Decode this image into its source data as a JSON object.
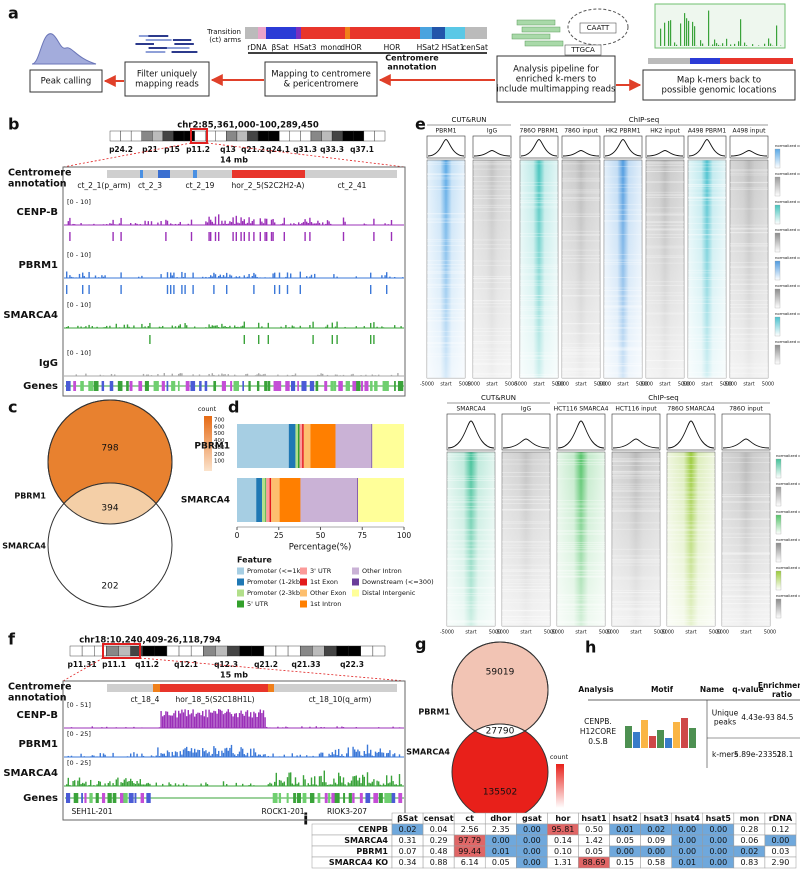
{
  "panel_labels": [
    "a",
    "b",
    "c",
    "d",
    "e",
    "f",
    "g",
    "h",
    "i"
  ],
  "panel_a": {
    "boxes": [
      [
        "Peak calling"
      ],
      [
        "Filter uniquely",
        "mapping reads"
      ],
      [
        "Mapping to centromere",
        "& pericentromere"
      ],
      [
        "Analysis pipeline for",
        "enriched k-mers to",
        "include multimapping reads"
      ],
      [
        "Map k-mers back to",
        "possible genomic locations"
      ]
    ],
    "transition": [
      "Transition",
      "(ct) arms"
    ],
    "legend": [
      "rDNA",
      "βSat",
      "HSat3",
      "mono",
      "dHOR",
      "HOR",
      "HSat2",
      "HSat1",
      "cenSat"
    ],
    "annotation": [
      "Centromere",
      "annotation"
    ],
    "kmers": [
      "CAATT",
      "TTGCA"
    ]
  },
  "panel_b": {
    "region": "chr2:85,361,000-100,289,450",
    "bands": [
      "p24.2",
      "p21",
      "p15",
      "p11.2",
      "q13",
      "q21.2",
      "q24.1",
      "q31.3",
      "q33.3",
      "q37.1"
    ],
    "scale": "14 mb",
    "annotation_label": [
      "Centromere",
      "annotation"
    ],
    "annotations": [
      "ct_2_1(p_arm)",
      "ct_2_3",
      "ct_2_19",
      "hor_2_5(S2C2H2-A)",
      "ct_2_41"
    ],
    "tracks": [
      {
        "name": "CENP-B",
        "range": "[0 - 10]",
        "color": "#9b30b8"
      },
      {
        "name": "PBRM1",
        "range": "[0 - 10]",
        "color": "#3b78d8"
      },
      {
        "name": "SMARCA4",
        "range": "[0 - 10]",
        "color": "#3aa33a"
      },
      {
        "name": "IgG",
        "range": "[0 - 10]",
        "color": "#aaaaaa"
      }
    ],
    "genes": "Genes"
  },
  "panel_c": {
    "sets": [
      "PBRM1",
      "SMARCA4"
    ],
    "counts": [
      798,
      394,
      202
    ],
    "legend_title": "count",
    "legend_ticks": [
      700,
      600,
      500,
      400,
      300,
      200,
      100
    ]
  },
  "chart_data": {
    "type": "bar",
    "orientation": "horizontal",
    "stacked": true,
    "categories": [
      "PBRM1",
      "SMARCA4"
    ],
    "series": [
      {
        "name": "Promoter (<=1kb)",
        "color": "#a6cee3",
        "values": [
          31,
          11.5
        ]
      },
      {
        "name": "Promoter (1-2kb)",
        "color": "#1f78b4",
        "values": [
          4,
          3.5
        ]
      },
      {
        "name": "Promoter (2-3kb)",
        "color": "#b2df8a",
        "values": [
          1.5,
          2
        ]
      },
      {
        "name": "5' UTR",
        "color": "#33a02c",
        "values": [
          1,
          0.5
        ]
      },
      {
        "name": "3' UTR",
        "color": "#fb9a99",
        "values": [
          1.5,
          2
        ]
      },
      {
        "name": "1st Exon",
        "color": "#e31a1c",
        "values": [
          1,
          1
        ]
      },
      {
        "name": "Other Exon",
        "color": "#fdbf6f",
        "values": [
          4,
          5
        ]
      },
      {
        "name": "1st Intron",
        "color": "#ff7f00",
        "values": [
          15,
          12.5
        ]
      },
      {
        "name": "Other Intron",
        "color": "#cab2d6",
        "values": [
          21.5,
          34
        ]
      },
      {
        "name": "Downstream (<=300)",
        "color": "#6a3d9a",
        "values": [
          0.5,
          0.5
        ]
      },
      {
        "name": "Distal Intergenic",
        "color": "#ffff99",
        "values": [
          19,
          27.5
        ]
      }
    ],
    "xlim": [
      0,
      100
    ],
    "xticks": [
      0,
      25,
      50,
      75,
      100
    ],
    "xlabel": "Percentage(%)",
    "legend_title": "Feature"
  },
  "panel_e": {
    "top": {
      "groups": [
        "CUT&RUN",
        "ChIP-seq"
      ],
      "columns": [
        {
          "name": "PBRM1",
          "color": "#5aa9e6"
        },
        {
          "name": "IgG",
          "color": "#9a9a9a"
        },
        {
          "name": "786O PBRM1",
          "color": "#45c4bd"
        },
        {
          "name": "786O input",
          "color": "#8c8c8c"
        },
        {
          "name": "HK2 PBRM1",
          "color": "#4f9be0"
        },
        {
          "name": "HK2 input",
          "color": "#8c8c8c"
        },
        {
          "name": "A498 PBRM1",
          "color": "#4cc2cf"
        },
        {
          "name": "A498 input",
          "color": "#8c8c8c"
        }
      ]
    },
    "bottom": {
      "groups": [
        "CUT&RUN",
        "ChIP-seq"
      ],
      "columns": [
        {
          "name": "SMARCA4",
          "color": "#45c29a"
        },
        {
          "name": "IgG",
          "color": "#9a9a9a"
        },
        {
          "name": "HCT116 SMARCA4",
          "color": "#55c46a"
        },
        {
          "name": "HCT116 input",
          "color": "#8c8c8c"
        },
        {
          "name": "786O SMARCA4",
          "color": "#9ccc3c"
        },
        {
          "name": "786O input",
          "color": "#8c8c8c"
        }
      ]
    },
    "xlabels": [
      "-5000",
      "start",
      "5000"
    ],
    "legend_title": "normalized counts"
  },
  "panel_f": {
    "region": "chr18:10,240,409-26,118,794",
    "bands": [
      "p11.31",
      "p11.1",
      "q11.2",
      "q12.1",
      "q12.3",
      "q21.2",
      "q21.33",
      "q22.3"
    ],
    "scale": "15 mb",
    "annotation_label": [
      "Centromere",
      "annotation"
    ],
    "annotations": [
      "ct_18_4",
      "hor_18_5(S2C18H1L)",
      "ct_18_10(q_arm)"
    ],
    "tracks": [
      {
        "name": "CENP-B",
        "range": "[0 - 51]",
        "color": "#9b30b8"
      },
      {
        "name": "PBRM1",
        "range": "[0 - 25]",
        "color": "#3b78d8"
      },
      {
        "name": "SMARCA4",
        "range": "[0 - 25]",
        "color": "#3aa33a"
      }
    ],
    "genes": "Genes",
    "gene_names": [
      "SEH1L-201",
      "ROCK1-201",
      "RIOK3-207"
    ]
  },
  "panel_g": {
    "sets": [
      "PBRM1",
      "SMARCA4"
    ],
    "counts": [
      59019,
      27790,
      135502
    ],
    "legend_title": "count"
  },
  "panel_h": {
    "headers": [
      "Analysis",
      "Motif",
      "Name",
      "q-value"
    ],
    "ratio_header": [
      "Enrichment",
      "ratio"
    ],
    "analysis": [
      "CENPB.",
      "H12CORE",
      "0.S.B"
    ],
    "rows": [
      {
        "name": [
          "Unique",
          "peaks"
        ],
        "q": "4.43e-93",
        "ratio": 84.5
      },
      {
        "name": [
          "k-mers"
        ],
        "q": "5.89e-23351",
        "ratio": 28.1
      }
    ]
  },
  "panel_i": {
    "columns": [
      "βSat",
      "censat",
      "ct",
      "dhor",
      "gsat",
      "hor",
      "hsat1",
      "hsat2",
      "hsat3",
      "hsat4",
      "hsat5",
      "mon",
      "rDNA"
    ],
    "rows": [
      {
        "name": "CENPB",
        "color": "#9b30b8",
        "values": [
          "0.02",
          "0.04",
          "2.56",
          "2.35",
          "0.00",
          "95.81",
          "0.50",
          "0.01",
          "0.02",
          "0.00",
          "0.00",
          "0.28",
          "0.12"
        ]
      },
      {
        "name": "SMARCA4",
        "color": "#3aa33a",
        "values": [
          "0.31",
          "0.29",
          "97.79",
          "0.00",
          "0.00",
          "0.14",
          "1.42",
          "0.05",
          "0.09",
          "0.00",
          "0.00",
          "0.06",
          "0.00"
        ]
      },
      {
        "name": "PBRM1",
        "color": "#3b78d8",
        "values": [
          "0.07",
          "0.48",
          "99.44",
          "0.01",
          "0.00",
          "0.10",
          "0.05",
          "0.00",
          "0.00",
          "0.00",
          "0.00",
          "0.02",
          "0.03"
        ]
      },
      {
        "name": "SMARCA4 KO",
        "color": "#000000",
        "values": [
          "0.34",
          "0.88",
          "6.14",
          "0.05",
          "0.00",
          "1.31",
          "88.69",
          "0.15",
          "0.58",
          "0.01",
          "0.00",
          "0.83",
          "2.90"
        ]
      }
    ]
  }
}
